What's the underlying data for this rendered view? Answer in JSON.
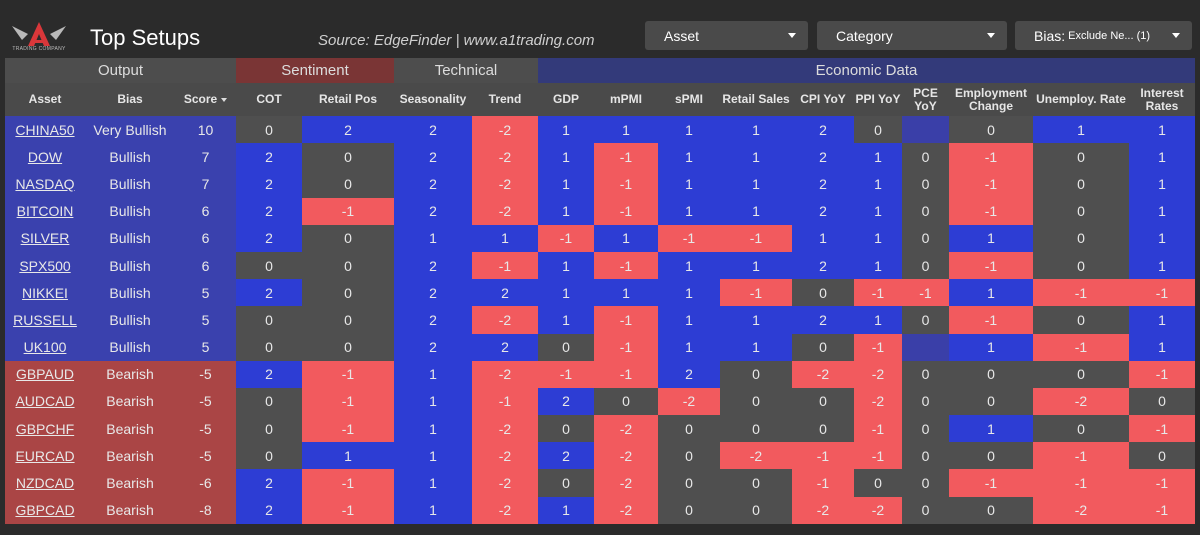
{
  "header": {
    "logo_text": "TRADING COMPANY",
    "title": "Top Setups",
    "source": "Source: EdgeFinder | www.a1trading.com",
    "dropdowns": {
      "asset": "Asset",
      "category": "Category",
      "bias_label": "Bias:",
      "bias_value": "Exclude Ne... (1)"
    }
  },
  "colors": {
    "positive": "#2d3dd4",
    "negative": "#f25a5e",
    "neutral": "#4f4f4f",
    "bullish_row": "#3a41ae",
    "bearish_row": "#aa4545",
    "sentiment_group": "#7a3535",
    "economic_group": "#333a7a"
  },
  "groups": [
    "Output",
    "Sentiment",
    "Technical",
    "Economic Data"
  ],
  "columns": [
    "Asset",
    "Bias",
    "Score",
    "COT",
    "Retail Pos",
    "Seasonality",
    "Trend",
    "GDP",
    "mPMI",
    "sPMI",
    "Retail Sales",
    "CPI YoY",
    "PPI YoY",
    "PCE YoY",
    "Employment Change",
    "Unemploy. Rate",
    "Interest Rates"
  ],
  "rows": [
    {
      "asset": "CHINA50",
      "bias": "Very Bullish",
      "score": "10",
      "vals": [
        "0",
        "2",
        "2",
        "-2",
        "1",
        "1",
        "1",
        "1",
        "2",
        "0",
        "",
        "0",
        "1",
        "1"
      ]
    },
    {
      "asset": "DOW",
      "bias": "Bullish",
      "score": "7",
      "vals": [
        "2",
        "0",
        "2",
        "-2",
        "1",
        "-1",
        "1",
        "1",
        "2",
        "1",
        "0",
        "-1",
        "0",
        "1"
      ]
    },
    {
      "asset": "NASDAQ",
      "bias": "Bullish",
      "score": "7",
      "vals": [
        "2",
        "0",
        "2",
        "-2",
        "1",
        "-1",
        "1",
        "1",
        "2",
        "1",
        "0",
        "-1",
        "0",
        "1"
      ]
    },
    {
      "asset": "BITCOIN",
      "bias": "Bullish",
      "score": "6",
      "vals": [
        "2",
        "-1",
        "2",
        "-2",
        "1",
        "-1",
        "1",
        "1",
        "2",
        "1",
        "0",
        "-1",
        "0",
        "1"
      ]
    },
    {
      "asset": "SILVER",
      "bias": "Bullish",
      "score": "6",
      "vals": [
        "2",
        "0",
        "1",
        "1",
        "-1",
        "1",
        "-1",
        "-1",
        "1",
        "1",
        "0",
        "1",
        "0",
        "1"
      ]
    },
    {
      "asset": "SPX500",
      "bias": "Bullish",
      "score": "6",
      "vals": [
        "0",
        "0",
        "2",
        "-1",
        "1",
        "-1",
        "1",
        "1",
        "2",
        "1",
        "0",
        "-1",
        "0",
        "1"
      ]
    },
    {
      "asset": "NIKKEI",
      "bias": "Bullish",
      "score": "5",
      "vals": [
        "2",
        "0",
        "2",
        "2",
        "1",
        "1",
        "1",
        "-1",
        "0",
        "-1",
        "-1",
        "1",
        "-1",
        "-1"
      ]
    },
    {
      "asset": "RUSSELL",
      "bias": "Bullish",
      "score": "5",
      "vals": [
        "0",
        "0",
        "2",
        "-2",
        "1",
        "-1",
        "1",
        "1",
        "2",
        "1",
        "0",
        "-1",
        "0",
        "1"
      ]
    },
    {
      "asset": "UK100",
      "bias": "Bullish",
      "score": "5",
      "vals": [
        "0",
        "0",
        "2",
        "2",
        "0",
        "-1",
        "1",
        "1",
        "0",
        "-1",
        "",
        "1",
        "-1",
        "1"
      ]
    },
    {
      "asset": "GBPAUD",
      "bias": "Bearish",
      "score": "-5",
      "vals": [
        "2",
        "-1",
        "1",
        "-2",
        "-1",
        "-1",
        "2",
        "0",
        "-2",
        "-2",
        "0",
        "0",
        "0",
        "-1"
      ]
    },
    {
      "asset": "AUDCAD",
      "bias": "Bearish",
      "score": "-5",
      "vals": [
        "0",
        "-1",
        "1",
        "-1",
        "2",
        "0",
        "-2",
        "0",
        "0",
        "-2",
        "0",
        "0",
        "-2",
        "0"
      ]
    },
    {
      "asset": "GBPCHF",
      "bias": "Bearish",
      "score": "-5",
      "vals": [
        "0",
        "-1",
        "1",
        "-2",
        "0",
        "-2",
        "0",
        "0",
        "0",
        "-1",
        "0",
        "1",
        "0",
        "-1"
      ]
    },
    {
      "asset": "EURCAD",
      "bias": "Bearish",
      "score": "-5",
      "vals": [
        "0",
        "1",
        "1",
        "-2",
        "2",
        "-2",
        "0",
        "-2",
        "-1",
        "-1",
        "0",
        "0",
        "-1",
        "0"
      ]
    },
    {
      "asset": "NZDCAD",
      "bias": "Bearish",
      "score": "-6",
      "vals": [
        "2",
        "-1",
        "1",
        "-2",
        "0",
        "-2",
        "0",
        "0",
        "-1",
        "0",
        "0",
        "-1",
        "-1",
        "-1"
      ]
    },
    {
      "asset": "GBPCAD",
      "bias": "Bearish",
      "score": "-8",
      "vals": [
        "2",
        "-1",
        "1",
        "-2",
        "1",
        "-2",
        "0",
        "0",
        "-2",
        "-2",
        "0",
        "0",
        "-2",
        "-1"
      ]
    }
  ]
}
